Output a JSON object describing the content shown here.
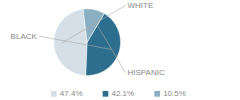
{
  "chart_data": {
    "type": "pie",
    "categories": [
      "WHITE",
      "BLACK",
      "HISPANIC"
    ],
    "values": [
      47.4,
      42.1,
      10.5
    ],
    "value_labels": [
      "47.4%",
      "42.1%",
      "10.5%"
    ],
    "colors": [
      "#d4dfe8",
      "#2d6d8d",
      "#8aafc2"
    ],
    "legend": "bottom"
  }
}
